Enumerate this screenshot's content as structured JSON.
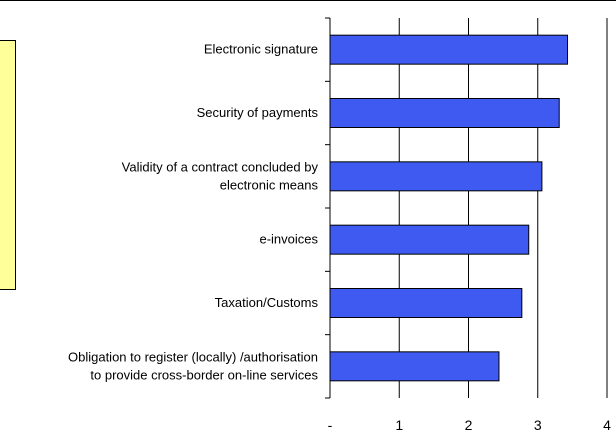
{
  "chart_data": {
    "type": "bar",
    "orientation": "horizontal",
    "categories": [
      [
        "Electronic signature"
      ],
      [
        "Security of payments"
      ],
      [
        "Validity of a contract concluded by",
        "electronic means"
      ],
      [
        "e-invoices"
      ],
      [
        "Taxation/Customs"
      ],
      [
        "Obligation to register (locally) /authorisation",
        "to provide cross-border on-line services"
      ]
    ],
    "values": [
      3.43,
      3.31,
      3.06,
      2.87,
      2.77,
      2.44
    ],
    "xlim": [
      0,
      4
    ],
    "x_ticks": [
      0,
      1,
      2,
      3,
      4
    ],
    "x_tick_labels": [
      "-",
      "1",
      "2",
      "3",
      "4"
    ],
    "grid": "vertical",
    "title": "",
    "xlabel": "",
    "ylabel": "",
    "colors": {
      "bar_fill": "#3f5af0",
      "bar_stroke": "#000000",
      "grid": "#000000",
      "legend_fill": "#ffff99"
    }
  }
}
